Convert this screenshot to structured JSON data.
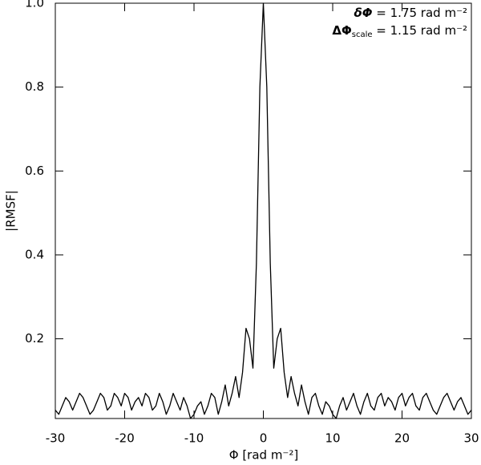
{
  "chart_data": {
    "type": "line",
    "xlabel": "Φ [rad m⁻²]",
    "ylabel": "|RMSF|",
    "annotations": [
      {
        "symbol": "δΦ",
        "text": " = 1.75 rad m⁻²"
      },
      {
        "symbol": "ΔΦ",
        "subscript": "scale",
        "text": " = 1.15 rad m⁻²"
      }
    ],
    "color": "#000000",
    "xlim": [
      -30,
      30
    ],
    "ylim": [
      0.01,
      1.0
    ],
    "xticks": [
      -30,
      -20,
      -10,
      0,
      10,
      20,
      30
    ],
    "yticks": [
      0.2,
      0.4,
      0.6,
      0.8,
      {
        "value": 1,
        "label": "1.0"
      }
    ],
    "x": [
      -30,
      -29.5,
      -29,
      -28.5,
      -28,
      -27.5,
      -27,
      -26.5,
      -26,
      -25.5,
      -25,
      -24.5,
      -24,
      -23.5,
      -23,
      -22.5,
      -22,
      -21.5,
      -21,
      -20.5,
      -20,
      -19.5,
      -19,
      -18.5,
      -18,
      -17.5,
      -17,
      -16.5,
      -16,
      -15.5,
      -15,
      -14.5,
      -14,
      -13.5,
      -13,
      -12.5,
      -12,
      -11.5,
      -11,
      -10.5,
      -10,
      -9.5,
      -9,
      -8.5,
      -8,
      -7.5,
      -7,
      -6.5,
      -6,
      -5.5,
      -5,
      -4.5,
      -4,
      -3.5,
      -3,
      -2.5,
      -2,
      -1.5,
      -1,
      -0.5,
      0,
      0.5,
      1,
      1.5,
      2,
      2.5,
      3,
      3.5,
      4,
      4.5,
      5,
      5.5,
      6,
      6.5,
      7,
      7.5,
      8,
      8.5,
      9,
      9.5,
      10,
      10.5,
      11,
      11.5,
      12,
      12.5,
      13,
      13.5,
      14,
      14.5,
      15,
      15.5,
      16,
      16.5,
      17,
      17.5,
      18,
      18.5,
      19,
      19.5,
      20,
      20.5,
      21,
      21.5,
      22,
      22.5,
      23,
      23.5,
      24,
      24.5,
      25,
      25.5,
      26,
      26.5,
      27,
      27.5,
      28,
      28.5,
      29,
      29.5,
      30
    ],
    "values": [
      0.03,
      0.02,
      0.04,
      0.06,
      0.05,
      0.03,
      0.05,
      0.07,
      0.06,
      0.04,
      0.02,
      0.03,
      0.05,
      0.07,
      0.06,
      0.03,
      0.04,
      0.07,
      0.06,
      0.04,
      0.07,
      0.06,
      0.03,
      0.05,
      0.06,
      0.04,
      0.07,
      0.06,
      0.03,
      0.04,
      0.07,
      0.05,
      0.02,
      0.04,
      0.07,
      0.05,
      0.03,
      0.06,
      0.04,
      0.01,
      0.02,
      0.04,
      0.05,
      0.02,
      0.04,
      0.07,
      0.06,
      0.02,
      0.05,
      0.09,
      0.04,
      0.07,
      0.11,
      0.06,
      0.12,
      0.225,
      0.2,
      0.13,
      0.38,
      0.8,
      1.0,
      0.8,
      0.38,
      0.13,
      0.2,
      0.225,
      0.12,
      0.06,
      0.11,
      0.07,
      0.04,
      0.09,
      0.05,
      0.02,
      0.06,
      0.07,
      0.04,
      0.02,
      0.05,
      0.04,
      0.02,
      0.01,
      0.04,
      0.06,
      0.03,
      0.05,
      0.07,
      0.04,
      0.02,
      0.05,
      0.07,
      0.04,
      0.03,
      0.06,
      0.07,
      0.04,
      0.06,
      0.05,
      0.03,
      0.06,
      0.07,
      0.04,
      0.06,
      0.07,
      0.04,
      0.03,
      0.06,
      0.07,
      0.05,
      0.03,
      0.02,
      0.04,
      0.06,
      0.07,
      0.05,
      0.03,
      0.05,
      0.06,
      0.04,
      0.02,
      0.03
    ]
  }
}
